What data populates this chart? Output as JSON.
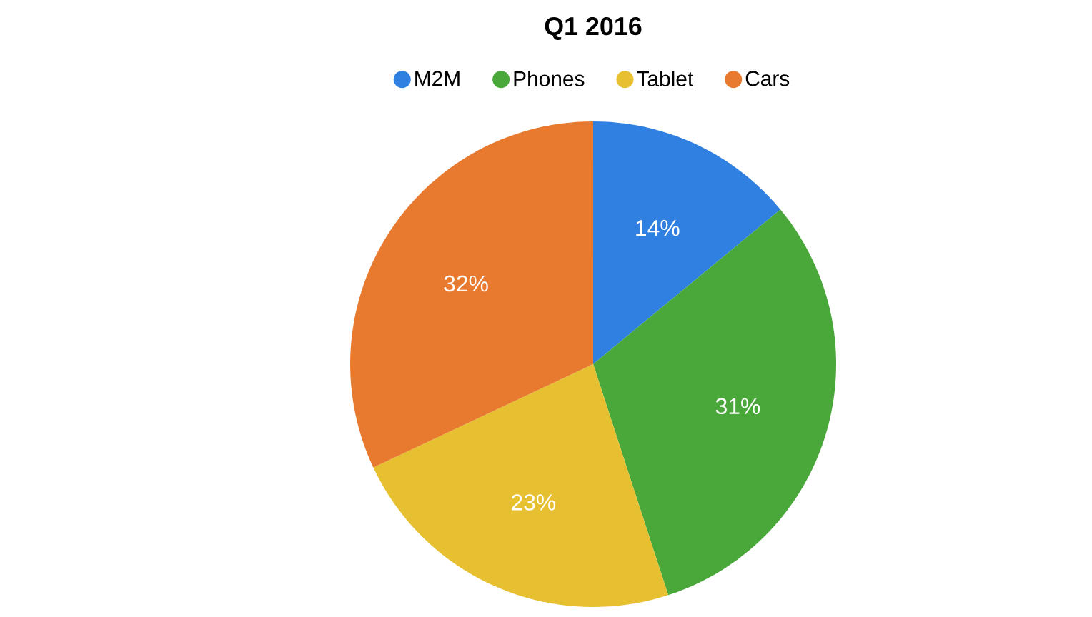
{
  "chart_data": {
    "type": "pie",
    "title": "Q1 2016",
    "categories": [
      "M2M",
      "Phones",
      "Tablet",
      "Cars"
    ],
    "values": [
      14,
      31,
      23,
      32
    ],
    "colors": [
      "#2f80e0",
      "#4aa83a",
      "#e6c030",
      "#e87a30"
    ],
    "value_labels": [
      "14%",
      "31%",
      "23%",
      "32%"
    ],
    "legend": "top"
  }
}
